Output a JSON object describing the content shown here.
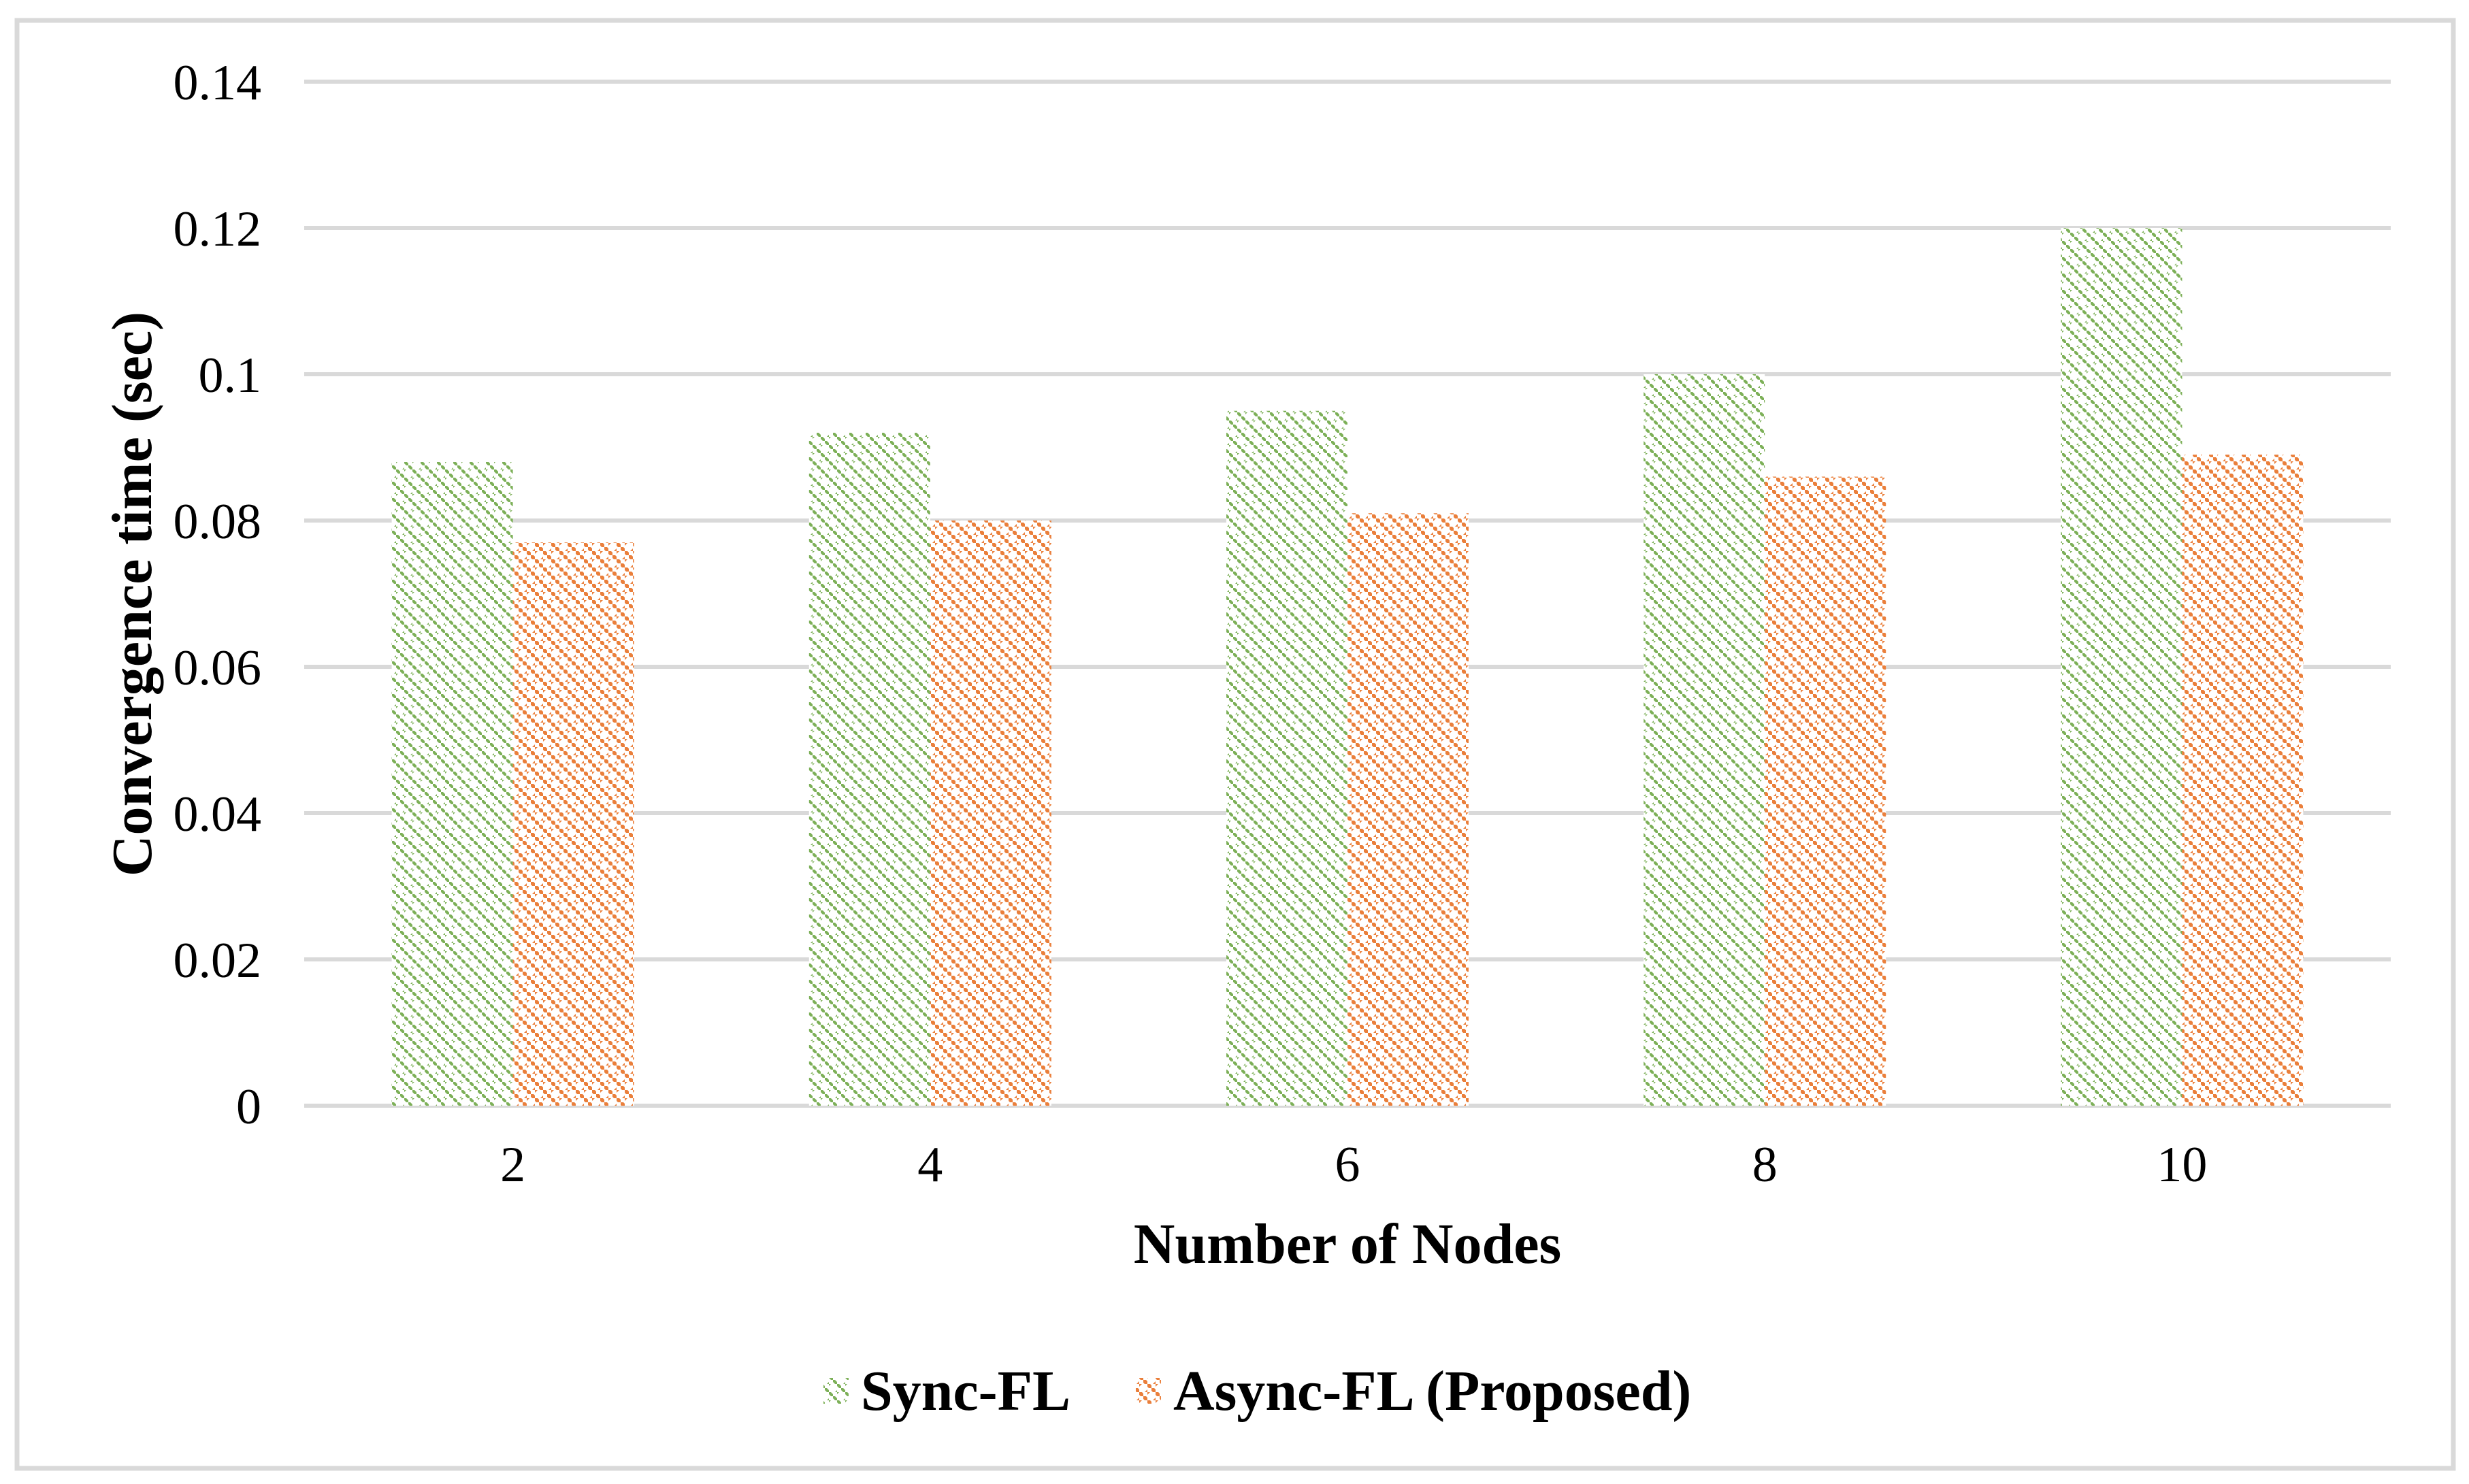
{
  "chart_data": {
    "type": "bar",
    "title": "",
    "categories": [
      "2",
      "4",
      "6",
      "8",
      "10"
    ],
    "series": [
      {
        "name": "Sync-FL",
        "color": "#7DB058",
        "pattern": "checker-diamond",
        "values": [
          0.088,
          0.092,
          0.095,
          0.1,
          0.12
        ]
      },
      {
        "name": "Async-FL (Proposed)",
        "color": "#EA7F3B",
        "pattern": "checker-diamond",
        "values": [
          0.077,
          0.08,
          0.081,
          0.086,
          0.089
        ]
      }
    ],
    "xlabel": "Number of Nodes",
    "ylabel": "Convergence time (sec)",
    "ylim": [
      0,
      0.14
    ],
    "yticks": [
      0,
      0.02,
      0.04,
      0.06,
      0.08,
      0.1,
      0.12,
      0.14
    ],
    "ytick_labels": [
      "0",
      "0.02",
      "0.04",
      "0.06",
      "0.08",
      "0.1",
      "0.12",
      "0.14"
    ],
    "grid": "horizontal",
    "legend_position": "bottom",
    "colors": {
      "grid": "#D9D9D9",
      "frame": "#D9D9D9",
      "text": "#000000",
      "background": "#FFFFFF"
    }
  }
}
